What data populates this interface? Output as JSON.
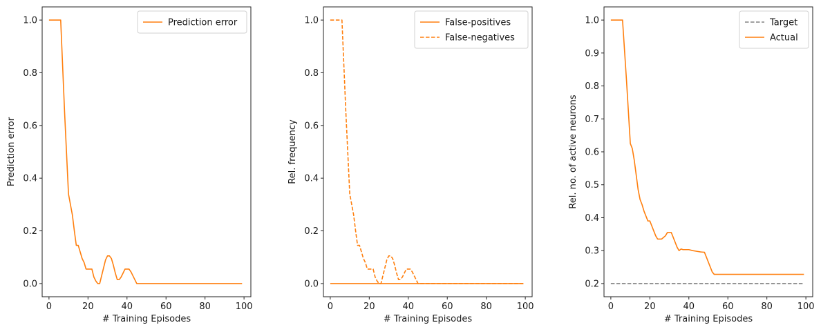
{
  "chart_data": [
    {
      "type": "line",
      "xlabel": "# Training Episodes",
      "ylabel": "Prediction error",
      "xlim": [
        -3.5,
        103.5
      ],
      "ylim": [
        -0.05,
        1.05
      ],
      "xticks": [
        0,
        20,
        40,
        60,
        80,
        100
      ],
      "yticks": [
        0.0,
        0.2,
        0.4,
        0.6,
        0.8,
        1.0
      ],
      "ytick_decimals": 1,
      "grid": false,
      "legend_placement": "top-right",
      "series": [
        {
          "name": "Prediction error",
          "color": "#ff7f0e",
          "dash": "solid",
          "x": [
            0,
            6,
            8,
            10,
            12,
            13,
            14,
            15,
            16,
            17,
            18,
            19,
            20,
            22,
            23,
            24,
            25,
            26,
            27,
            28,
            29,
            30,
            31,
            32,
            33,
            34,
            35,
            36,
            37,
            38,
            39,
            40,
            41,
            42,
            43,
            44,
            45,
            46,
            99
          ],
          "y": [
            1.0,
            1.0,
            0.65,
            0.34,
            0.26,
            0.2,
            0.145,
            0.145,
            0.12,
            0.095,
            0.08,
            0.055,
            0.055,
            0.055,
            0.025,
            0.01,
            0.0,
            0.0,
            0.03,
            0.06,
            0.09,
            0.105,
            0.105,
            0.095,
            0.07,
            0.04,
            0.015,
            0.015,
            0.025,
            0.04,
            0.055,
            0.055,
            0.055,
            0.045,
            0.03,
            0.015,
            0.0,
            0.0,
            0.0
          ]
        }
      ]
    },
    {
      "type": "line",
      "xlabel": "# Training Episodes",
      "ylabel": "Rel. frequency",
      "xlim": [
        -3.5,
        103.5
      ],
      "ylim": [
        -0.05,
        1.05
      ],
      "xticks": [
        0,
        20,
        40,
        60,
        80,
        100
      ],
      "yticks": [
        0.0,
        0.2,
        0.4,
        0.6,
        0.8,
        1.0
      ],
      "ytick_decimals": 1,
      "grid": false,
      "legend_placement": "top-right",
      "series": [
        {
          "name": "False-positives",
          "color": "#ff7f0e",
          "dash": "solid",
          "x": [
            0,
            99
          ],
          "y": [
            0.0,
            0.0
          ]
        },
        {
          "name": "False-negatives",
          "color": "#ff7f0e",
          "dash": "dashed",
          "x": [
            0,
            6,
            8,
            10,
            12,
            13,
            14,
            15,
            16,
            17,
            18,
            19,
            20,
            22,
            23,
            24,
            25,
            26,
            27,
            28,
            29,
            30,
            31,
            32,
            33,
            34,
            35,
            36,
            37,
            38,
            39,
            40,
            41,
            42,
            43,
            44,
            45,
            46,
            99
          ],
          "y": [
            1.0,
            1.0,
            0.65,
            0.34,
            0.26,
            0.2,
            0.145,
            0.145,
            0.12,
            0.095,
            0.08,
            0.055,
            0.055,
            0.055,
            0.025,
            0.01,
            0.0,
            0.0,
            0.03,
            0.06,
            0.09,
            0.105,
            0.105,
            0.095,
            0.07,
            0.04,
            0.015,
            0.015,
            0.025,
            0.04,
            0.055,
            0.055,
            0.055,
            0.045,
            0.03,
            0.015,
            0.0,
            0.0,
            0.0
          ]
        }
      ]
    },
    {
      "type": "line",
      "xlabel": "# Training Episodes",
      "ylabel": "Rel. no. of active neurons",
      "xlim": [
        -3.5,
        103.5
      ],
      "ylim": [
        0.16,
        1.04
      ],
      "xticks": [
        0,
        20,
        40,
        60,
        80,
        100
      ],
      "yticks": [
        0.2,
        0.3,
        0.4,
        0.5,
        0.6,
        0.7,
        0.8,
        0.9,
        1.0
      ],
      "ytick_decimals": 1,
      "grid": false,
      "legend_placement": "top-right",
      "series": [
        {
          "name": "Target",
          "color": "#808080",
          "dash": "dashed",
          "x": [
            0,
            99
          ],
          "y": [
            0.2,
            0.2
          ]
        },
        {
          "name": "Actual",
          "color": "#ff7f0e",
          "dash": "solid",
          "x": [
            0,
            6,
            8,
            10,
            11,
            12,
            13,
            14,
            15,
            16,
            17,
            18,
            19,
            20,
            21,
            22,
            23,
            24,
            25,
            26,
            27,
            28,
            29,
            30,
            31,
            32,
            33,
            34,
            35,
            36,
            37,
            38,
            39,
            40,
            42,
            44,
            46,
            48,
            49,
            50,
            51,
            52,
            53,
            99
          ],
          "y": [
            1.0,
            1.0,
            0.82,
            0.625,
            0.61,
            0.575,
            0.53,
            0.485,
            0.455,
            0.44,
            0.42,
            0.405,
            0.39,
            0.39,
            0.375,
            0.36,
            0.345,
            0.335,
            0.335,
            0.335,
            0.34,
            0.345,
            0.355,
            0.355,
            0.355,
            0.34,
            0.325,
            0.31,
            0.3,
            0.305,
            0.303,
            0.303,
            0.303,
            0.303,
            0.3,
            0.298,
            0.296,
            0.295,
            0.28,
            0.265,
            0.25,
            0.235,
            0.228,
            0.228
          ]
        }
      ]
    }
  ]
}
